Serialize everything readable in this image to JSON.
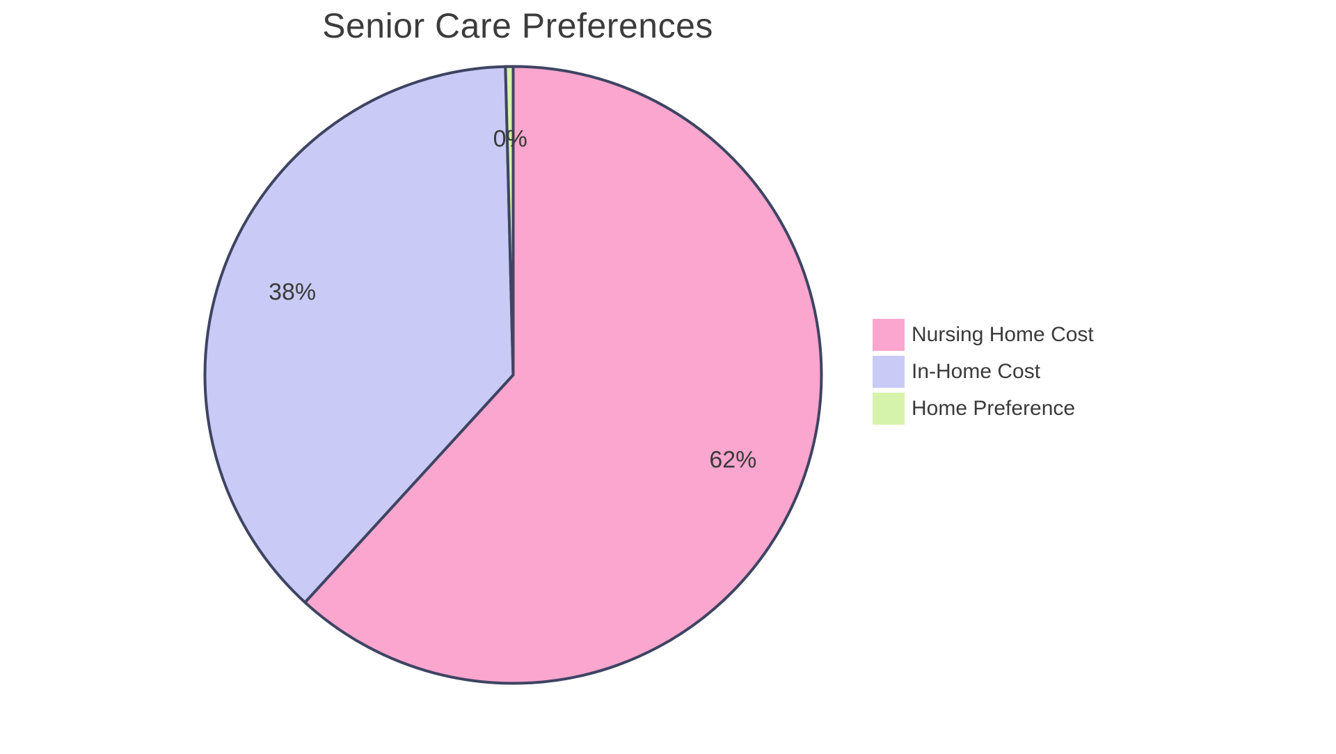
{
  "chart_data": {
    "type": "pie",
    "title": "Senior Care Preferences",
    "background_color": "#FFFFFF",
    "stroke_color": "#3E4462",
    "text_color": "#3A3A3A",
    "direction": "clockwise",
    "start_at": "top",
    "legend_position": "right",
    "grid": false,
    "slices": [
      {
        "label": "Nursing Home Cost",
        "value_pct": 61.8,
        "displayed_pct": "62%",
        "color": "#FAA6CE"
      },
      {
        "label": "In-Home Cost",
        "value_pct": 37.8,
        "displayed_pct": "38%",
        "color": "#C9CBF6"
      },
      {
        "label": "Home Preference",
        "value_pct": 0.4,
        "displayed_pct": "0%",
        "color": "#D6F3AC"
      }
    ]
  }
}
